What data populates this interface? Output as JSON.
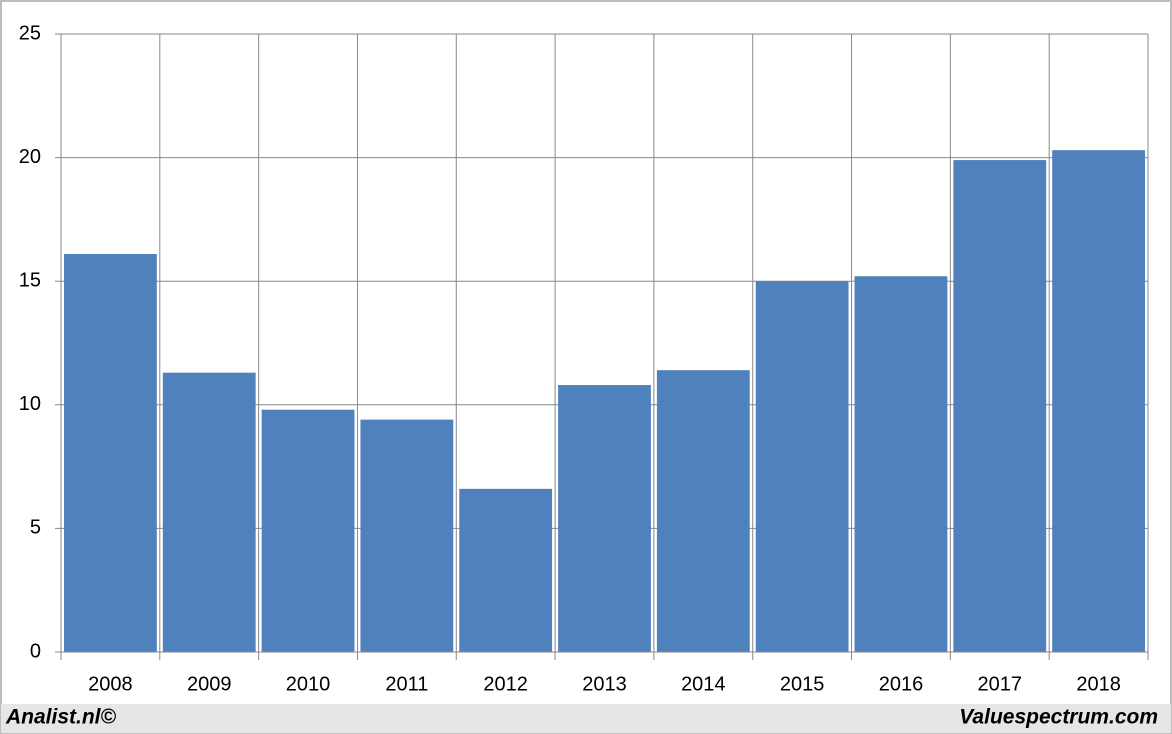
{
  "chart_data": {
    "type": "bar",
    "categories": [
      "2008",
      "2009",
      "2010",
      "2011",
      "2012",
      "2013",
      "2014",
      "2015",
      "2016",
      "2017",
      "2018"
    ],
    "values": [
      16.1,
      11.3,
      9.8,
      9.4,
      6.6,
      10.8,
      11.4,
      15.0,
      15.2,
      19.9,
      20.3
    ],
    "color": "#4f81bd",
    "ylim": [
      0,
      25
    ],
    "yticks": [
      0,
      5,
      10,
      15,
      20,
      25
    ],
    "grid": true,
    "annotations": [
      "Analist.nl©",
      "Valuespectrum.com"
    ]
  }
}
